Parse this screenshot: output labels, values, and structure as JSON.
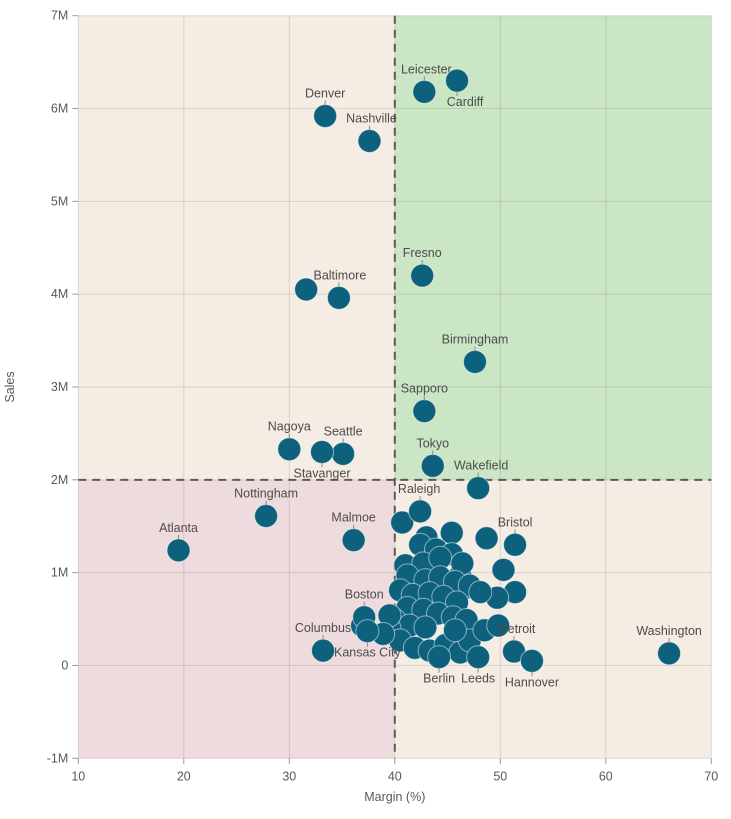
{
  "chart_data": {
    "type": "scatter",
    "title": "",
    "xlabel": "Margin (%)",
    "ylabel": "Sales",
    "xlim": [
      10,
      70
    ],
    "ylim_millions": [
      -1,
      7
    ],
    "x_ticks": [
      10,
      20,
      30,
      40,
      50,
      60,
      70
    ],
    "y_ticks_millions": [
      -1,
      0,
      1,
      2,
      3,
      4,
      5,
      6,
      7
    ],
    "y_tick_labels": [
      "-1M",
      "0",
      "1M",
      "2M",
      "3M",
      "4M",
      "5M",
      "6M",
      "7M"
    ],
    "grid": true,
    "legend": "none",
    "reference_lines": {
      "x_margin_pct": 40,
      "y_sales_millions": 2
    },
    "colors": {
      "point": "#0e617c",
      "point_stroke": "rgba(255,255,255,0.5)",
      "quadrant_top_left": "#f5ede3",
      "quadrant_top_right": "#cbe6c4",
      "quadrant_bottom_left": "#eedbdd",
      "quadrant_bottom_right": "#f5ede3",
      "reference_line": "#5a5a5a",
      "gridline": "rgba(110,100,90,0.2)",
      "tick_mark": "#999999",
      "leader_line": "#8c8c8c"
    },
    "labeled_points": [
      {
        "name": "Leicester",
        "margin_pct": 42.8,
        "sales_millions": 6.18,
        "label_pos": "above",
        "label_dx": 2
      },
      {
        "name": "Cardiff",
        "margin_pct": 45.9,
        "sales_millions": 6.3,
        "label_pos": "below",
        "label_dx": 8
      },
      {
        "name": "Denver",
        "margin_pct": 33.4,
        "sales_millions": 5.92,
        "label_pos": "above",
        "label_dx": 0
      },
      {
        "name": "Nashville",
        "margin_pct": 37.6,
        "sales_millions": 5.65,
        "label_pos": "above",
        "label_dx": 2
      },
      {
        "name": "Fresno",
        "margin_pct": 42.6,
        "sales_millions": 4.2,
        "label_pos": "above",
        "label_dx": 0
      },
      {
        "name": "Baltimore",
        "margin_pct": 34.7,
        "sales_millions": 3.96,
        "label_pos": "above",
        "label_dx": 1
      },
      {
        "name": "Birmingham",
        "margin_pct": 47.6,
        "sales_millions": 3.27,
        "label_pos": "above",
        "label_dx": 0
      },
      {
        "name": "Sapporo",
        "margin_pct": 42.8,
        "sales_millions": 2.74,
        "label_pos": "above",
        "label_dx": 0
      },
      {
        "name": "Nagoya",
        "margin_pct": 30.0,
        "sales_millions": 2.33,
        "label_pos": "above",
        "label_dx": 0
      },
      {
        "name": "Seattle",
        "margin_pct": 35.1,
        "sales_millions": 2.28,
        "label_pos": "above",
        "label_dx": 0
      },
      {
        "name": "Stavanger",
        "margin_pct": 33.1,
        "sales_millions": 2.3,
        "label_pos": "below",
        "label_dx": 0
      },
      {
        "name": "Tokyo",
        "margin_pct": 43.6,
        "sales_millions": 2.15,
        "label_pos": "above",
        "label_dx": 0
      },
      {
        "name": "Wakefield",
        "margin_pct": 47.9,
        "sales_millions": 1.91,
        "label_pos": "above",
        "label_dx": 3
      },
      {
        "name": "Raleigh",
        "margin_pct": 42.4,
        "sales_millions": 1.66,
        "label_pos": "above",
        "label_dx": -1
      },
      {
        "name": "Nottingham",
        "margin_pct": 27.8,
        "sales_millions": 1.61,
        "label_pos": "above",
        "label_dx": 0
      },
      {
        "name": "Atlanta",
        "margin_pct": 19.5,
        "sales_millions": 1.24,
        "label_pos": "above",
        "label_dx": 0
      },
      {
        "name": "Malmoe",
        "margin_pct": 36.1,
        "sales_millions": 1.35,
        "label_pos": "above",
        "label_dx": 0
      },
      {
        "name": "Bristol",
        "margin_pct": 51.4,
        "sales_millions": 1.3,
        "label_pos": "above",
        "label_dx": 0
      },
      {
        "name": "Boston",
        "margin_pct": 37.1,
        "sales_millions": 0.52,
        "label_pos": "above",
        "label_dx": 0
      },
      {
        "name": "Columbus",
        "margin_pct": 33.2,
        "sales_millions": 0.16,
        "label_pos": "above",
        "label_dx": 0
      },
      {
        "name": "Kansas City",
        "margin_pct": 37.4,
        "sales_millions": 0.37,
        "label_pos": "below",
        "label_dx": 0
      },
      {
        "name": "Berlin",
        "margin_pct": 44.2,
        "sales_millions": 0.09,
        "label_pos": "below",
        "label_dx": 0
      },
      {
        "name": "Leeds",
        "margin_pct": 47.9,
        "sales_millions": 0.09,
        "label_pos": "below",
        "label_dx": 0
      },
      {
        "name": "Detroit",
        "margin_pct": 51.3,
        "sales_millions": 0.15,
        "label_pos": "above",
        "label_dx": 3
      },
      {
        "name": "Hannover",
        "margin_pct": 53.0,
        "sales_millions": 0.05,
        "label_pos": "below",
        "label_dx": 0
      },
      {
        "name": "Washington",
        "margin_pct": 66.0,
        "sales_millions": 0.13,
        "label_pos": "above",
        "label_dx": 0
      }
    ],
    "unlabeled_points": [
      [
        31.6,
        4.05
      ],
      [
        40.7,
        1.54
      ],
      [
        43.0,
        1.38
      ],
      [
        45.4,
        1.43
      ],
      [
        48.7,
        1.37
      ],
      [
        42.4,
        1.3
      ],
      [
        43.9,
        1.25
      ],
      [
        45.4,
        1.2
      ],
      [
        50.3,
        1.03
      ],
      [
        51.4,
        0.79
      ],
      [
        49.7,
        0.73
      ],
      [
        46.9,
        0.84
      ],
      [
        46.2,
        0.97
      ],
      [
        41.0,
        1.08
      ],
      [
        42.7,
        1.1
      ],
      [
        44.3,
        1.16
      ],
      [
        46.4,
        1.1
      ],
      [
        41.2,
        0.97
      ],
      [
        42.9,
        0.92
      ],
      [
        44.3,
        0.95
      ],
      [
        45.7,
        0.9
      ],
      [
        47.1,
        0.86
      ],
      [
        48.1,
        0.79
      ],
      [
        40.5,
        0.81
      ],
      [
        41.7,
        0.76
      ],
      [
        43.3,
        0.78
      ],
      [
        44.6,
        0.74
      ],
      [
        45.9,
        0.68
      ],
      [
        41.2,
        0.62
      ],
      [
        42.7,
        0.6
      ],
      [
        44.1,
        0.56
      ],
      [
        45.5,
        0.52
      ],
      [
        46.8,
        0.49
      ],
      [
        40.0,
        0.49
      ],
      [
        41.4,
        0.43
      ],
      [
        42.9,
        0.41
      ],
      [
        39.5,
        0.4
      ],
      [
        40.5,
        0.27
      ],
      [
        41.9,
        0.19
      ],
      [
        43.3,
        0.16
      ],
      [
        44.8,
        0.22
      ],
      [
        46.2,
        0.14
      ],
      [
        47.1,
        0.27
      ],
      [
        45.7,
        0.38
      ],
      [
        48.5,
        0.38
      ],
      [
        49.8,
        0.43
      ],
      [
        36.9,
        0.43
      ],
      [
        39.5,
        0.54
      ],
      [
        38.9,
        0.34
      ]
    ]
  }
}
